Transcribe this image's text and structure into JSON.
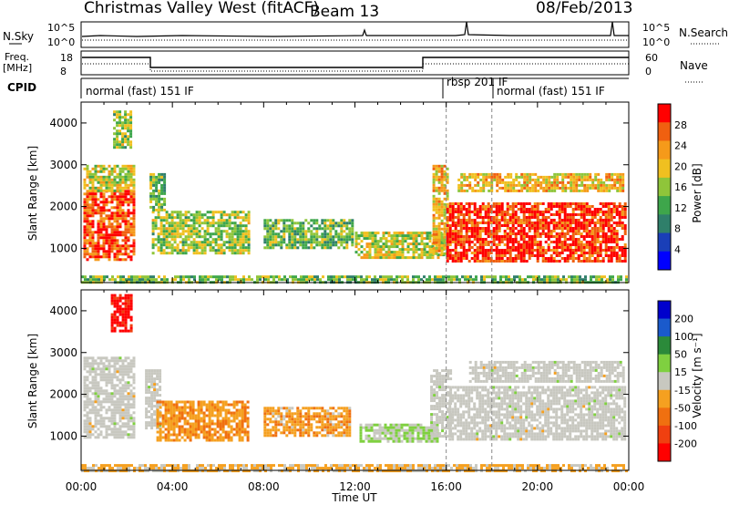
{
  "header": {
    "title": "Christmas Valley West (fitACF)",
    "beam": "Beam 13",
    "date": "08/Feb/2013"
  },
  "strips": {
    "nsky_label": "N.Sky",
    "nsky_ticks": [
      "10^5",
      "10^0"
    ],
    "nsearch_label": "N.Search",
    "nsearch_ticks": [
      "10^5",
      "10^0"
    ],
    "freq_label": "Freq.",
    "freq_unit": "[MHz]",
    "freq_ticks": [
      "18",
      "8"
    ],
    "nave_label": "Nave",
    "nave_ticks": [
      "60",
      "0"
    ],
    "cpid_label": "CPID",
    "cpid_segments": [
      {
        "label": "normal (fast) 151 IF",
        "start_hour": 0
      },
      {
        "label": "rbsp 201 IF",
        "start_hour": 16
      },
      {
        "label": "normal (fast) 151 IF",
        "start_hour": 18
      }
    ]
  },
  "colors": {
    "power_scale": [
      "#0000ff",
      "#1a3fb8",
      "#2f7f6a",
      "#3ea64b",
      "#8fc53a",
      "#f0c020",
      "#f59a1a",
      "#f06010",
      "#ff0000"
    ],
    "velocity_scale": [
      "#0000cc",
      "#1a5acc",
      "#2b8a3a",
      "#7fd040",
      "#c8c8c0",
      "#f5a020",
      "#f07010",
      "#f04010",
      "#ff0000"
    ],
    "ground_scatter": "#c8c8c0"
  },
  "chart_data": [
    {
      "type": "heatmap",
      "name": "power-panel",
      "ylabel": "Slant Range [km]",
      "xlabel": "Time UT",
      "x_ticks": [
        "00:00",
        "04:00",
        "08:00",
        "12:00",
        "16:00",
        "20:00",
        "00:00"
      ],
      "y_ticks": [
        "1000",
        "2000",
        "3000",
        "4000"
      ],
      "xlim_hours": [
        0,
        24
      ],
      "ylim_km": [
        180,
        4500
      ],
      "colorbar": {
        "label": "Power [dB]",
        "ticks": [
          "4",
          "8",
          "12",
          "16",
          "20",
          "24",
          "28"
        ],
        "range": [
          0,
          30
        ]
      },
      "regions": [
        {
          "t0": 0.1,
          "t1": 2.3,
          "r0": 700,
          "r1": 2400,
          "level": 0.85
        },
        {
          "t0": 0.1,
          "t1": 2.3,
          "r0": 2400,
          "r1": 3000,
          "level": 0.55
        },
        {
          "t0": 1.4,
          "t1": 2.2,
          "r0": 3400,
          "r1": 4300,
          "level": 0.5
        },
        {
          "t0": 3.1,
          "t1": 7.3,
          "r0": 900,
          "r1": 1900,
          "level": 0.5
        },
        {
          "t0": 3.0,
          "t1": 3.6,
          "r0": 1900,
          "r1": 2800,
          "level": 0.45
        },
        {
          "t0": 8.0,
          "t1": 11.9,
          "r0": 1000,
          "r1": 1700,
          "level": 0.45
        },
        {
          "t0": 12.0,
          "t1": 15.9,
          "r0": 800,
          "r1": 1400,
          "level": 0.55
        },
        {
          "t0": 15.4,
          "t1": 16.1,
          "r0": 900,
          "r1": 3000,
          "level": 0.65
        },
        {
          "t0": 16.0,
          "t1": 23.8,
          "r0": 700,
          "r1": 2100,
          "level": 0.9
        },
        {
          "t0": 16.5,
          "t1": 23.8,
          "r0": 2400,
          "r1": 2800,
          "level": 0.65
        },
        {
          "t0": 0.0,
          "t1": 23.9,
          "r0": 180,
          "r1": 350,
          "level": 0.45
        }
      ]
    },
    {
      "type": "heatmap",
      "name": "velocity-panel",
      "ylabel": "Slant Range [km]",
      "xlabel": "Time UT",
      "x_ticks": [
        "00:00",
        "04:00",
        "08:00",
        "12:00",
        "16:00",
        "20:00",
        "00:00"
      ],
      "y_ticks": [
        "1000",
        "2000",
        "3000",
        "4000"
      ],
      "xlim_hours": [
        0,
        24
      ],
      "ylim_km": [
        180,
        4500
      ],
      "colorbar": {
        "label": "Velocity [m s⁻¹]",
        "ticks": [
          "200",
          "100",
          "50",
          "15",
          "-15",
          "-50",
          "-100",
          "-200"
        ],
        "range": [
          -250,
          250
        ]
      },
      "regions": [
        {
          "t0": 0.1,
          "t1": 2.3,
          "r0": 1000,
          "r1": 2900,
          "value": 0,
          "ground": true
        },
        {
          "t0": 1.3,
          "t1": 2.2,
          "r0": 3500,
          "r1": 4400,
          "value": -220
        },
        {
          "t0": 2.8,
          "t1": 3.5,
          "r0": 1200,
          "r1": 2600,
          "value": 0,
          "ground": true
        },
        {
          "t0": 3.3,
          "t1": 7.3,
          "r0": 900,
          "r1": 1850,
          "value": -70
        },
        {
          "t0": 8.0,
          "t1": 11.8,
          "r0": 1000,
          "r1": 1700,
          "value": -60
        },
        {
          "t0": 12.2,
          "t1": 15.6,
          "r0": 900,
          "r1": 1300,
          "value": 30
        },
        {
          "t0": 15.3,
          "t1": 16.2,
          "r0": 1000,
          "r1": 2600,
          "value": 10,
          "ground": true
        },
        {
          "t0": 16.1,
          "t1": 23.8,
          "r0": 900,
          "r1": 2200,
          "value": 0,
          "ground": true
        },
        {
          "t0": 17.0,
          "t1": 23.8,
          "r0": 2300,
          "r1": 2800,
          "value": 0,
          "ground": true
        },
        {
          "t0": 0.0,
          "t1": 23.9,
          "r0": 180,
          "r1": 330,
          "value": -40
        }
      ]
    }
  ]
}
